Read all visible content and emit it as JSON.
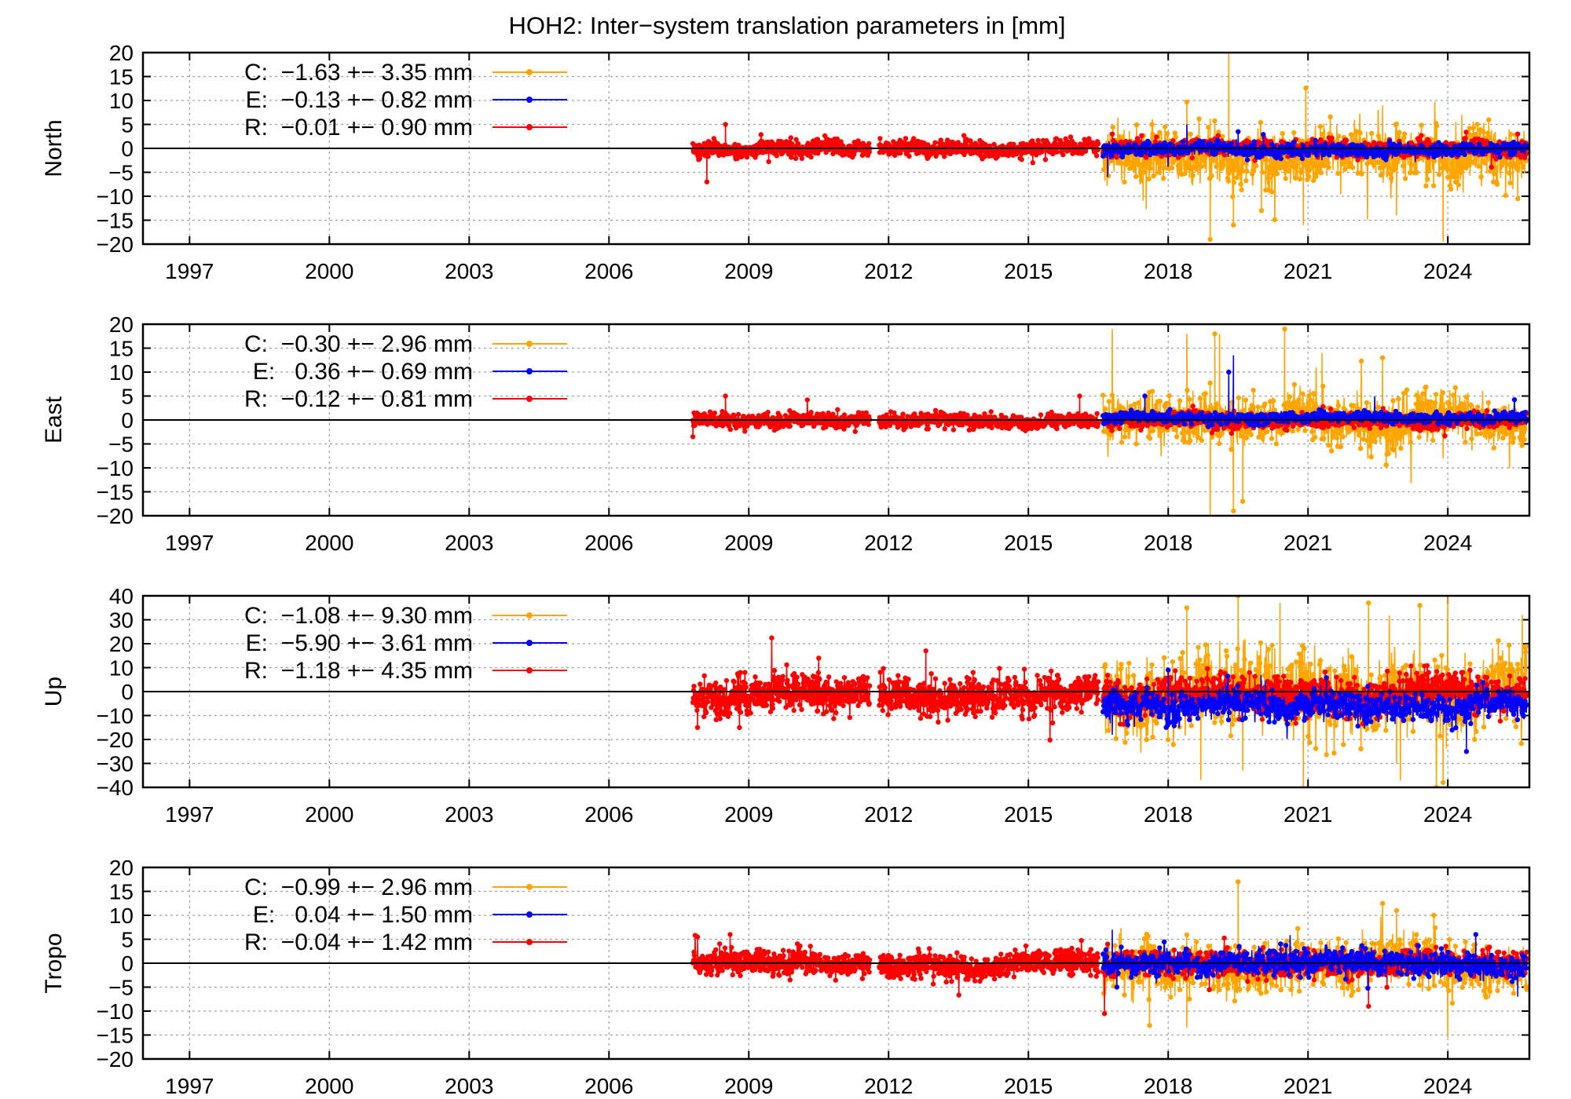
{
  "figure": {
    "title": "HOH2: Inter−system translation parameters in [mm]"
  },
  "chart_data": [
    {
      "type": "line",
      "ylabel": "North",
      "xlim": [
        1996.0,
        2025.75
      ],
      "ylim": [
        -20,
        20
      ],
      "xticks": [
        "1997",
        "2000",
        "2003",
        "2006",
        "2009",
        "2012",
        "2015",
        "2018",
        "2021",
        "2024"
      ],
      "yticks": [
        "20",
        "15",
        "10",
        "5",
        "0",
        "−5",
        "−10",
        "−15",
        "−20"
      ],
      "grid": true,
      "legend_position": "top-left",
      "legend": [
        {
          "key": "C",
          "text": "C:  −1.63 +− 3.35 mm",
          "color": "#ffa500"
        },
        {
          "key": "E",
          "text": "E:  −0.13 +− 0.82 mm",
          "color": "#0000ff"
        },
        {
          "key": "R",
          "text": "R:  −0.01 +− 0.90 mm",
          "color": "#ff0000"
        }
      ],
      "series": [
        {
          "name": "C",
          "color": "#ffa500",
          "x_range": [
            2016.6,
            2025.7
          ],
          "mean": -1.63,
          "std": 3.35,
          "spikes": [
            [
              2018.4,
              9.7
            ],
            [
              2018.9,
              -19.0
            ],
            [
              2019.3,
              20.0
            ],
            [
              2019.4,
              -16.0
            ],
            [
              2020.0,
              -13.0
            ],
            [
              2020.9,
              -16.0
            ],
            [
              2022.6,
              9.0
            ],
            [
              2022.9,
              -14.0
            ],
            [
              2023.9,
              -19.5
            ],
            [
              2024.3,
              7.0
            ],
            [
              2025.5,
              -10.5
            ]
          ]
        },
        {
          "name": "E",
          "color": "#0000ff",
          "x_range": [
            2016.6,
            2025.7
          ],
          "mean": -0.13,
          "std": 0.82,
          "spikes": [
            [
              2016.7,
              -6.0
            ],
            [
              2018.4,
              5.0
            ],
            [
              2019.5,
              3.5
            ]
          ]
        },
        {
          "name": "R",
          "color": "#ff0000",
          "segments": [
            [
              2007.8,
              2011.6
            ],
            [
              2011.8,
              2016.5
            ],
            [
              2016.6,
              2025.7
            ]
          ],
          "mean": -0.01,
          "std": 0.9,
          "spikes": [
            [
              2008.5,
              5.0
            ],
            [
              2008.1,
              -7.0
            ],
            [
              2016.8,
              3.0
            ],
            [
              2025.5,
              3.0
            ]
          ]
        }
      ]
    },
    {
      "type": "line",
      "ylabel": "East",
      "xlim": [
        1996.0,
        2025.75
      ],
      "ylim": [
        -20,
        20
      ],
      "xticks": [
        "1997",
        "2000",
        "2003",
        "2006",
        "2009",
        "2012",
        "2015",
        "2018",
        "2021",
        "2024"
      ],
      "yticks": [
        "20",
        "15",
        "10",
        "5",
        "0",
        "−5",
        "−10",
        "−15",
        "−20"
      ],
      "grid": true,
      "legend_position": "top-left",
      "legend": [
        {
          "key": "C",
          "text": "C:  −0.30 +− 2.96 mm",
          "color": "#ffa500"
        },
        {
          "key": "E",
          "text": "E:   0.36 +− 0.69 mm",
          "color": "#0000ff"
        },
        {
          "key": "R",
          "text": "R:  −0.12 +− 0.81 mm",
          "color": "#ff0000"
        }
      ],
      "series": [
        {
          "name": "C",
          "color": "#ffa500",
          "x_range": [
            2016.6,
            2025.7
          ],
          "mean": -0.3,
          "std": 2.96,
          "spikes": [
            [
              2016.8,
              19.0
            ],
            [
              2018.4,
              18.0
            ],
            [
              2018.9,
              -20.0
            ],
            [
              2019.0,
              18.0
            ],
            [
              2019.1,
              18.0
            ],
            [
              2019.4,
              -19.0
            ],
            [
              2019.6,
              -17.0
            ],
            [
              2020.5,
              19.0
            ],
            [
              2021.3,
              14.0
            ],
            [
              2022.6,
              13.0
            ],
            [
              2023.9,
              -8.0
            ]
          ]
        },
        {
          "name": "E",
          "color": "#0000ff",
          "x_range": [
            2016.6,
            2025.7
          ],
          "mean": 0.36,
          "std": 0.69,
          "spikes": [
            [
              2019.4,
              13.5
            ],
            [
              2019.3,
              10.0
            ],
            [
              2017.5,
              5.0
            ]
          ]
        },
        {
          "name": "R",
          "color": "#ff0000",
          "segments": [
            [
              2007.8,
              2011.6
            ],
            [
              2011.8,
              2016.5
            ],
            [
              2016.6,
              2025.7
            ]
          ],
          "mean": -0.12,
          "std": 0.81,
          "spikes": [
            [
              2008.5,
              5.0
            ],
            [
              2016.1,
              5.0
            ],
            [
              2007.8,
              -3.5
            ]
          ]
        }
      ]
    },
    {
      "type": "line",
      "ylabel": "Up",
      "xlim": [
        1996.0,
        2025.75
      ],
      "ylim": [
        -40,
        40
      ],
      "xticks": [
        "1997",
        "2000",
        "2003",
        "2006",
        "2009",
        "2012",
        "2015",
        "2018",
        "2021",
        "2024"
      ],
      "yticks": [
        "40",
        "30",
        "20",
        "10",
        "0",
        "−10",
        "−20",
        "−30",
        "−40"
      ],
      "grid": true,
      "legend_position": "top-left",
      "legend": [
        {
          "key": "C",
          "text": "C:  −1.08 +− 9.30 mm",
          "color": "#ffa500"
        },
        {
          "key": "E",
          "text": "E:  −5.90 +− 3.61 mm",
          "color": "#0000ff"
        },
        {
          "key": "R",
          "text": "R:  −1.18 +− 4.35 mm",
          "color": "#ff0000"
        }
      ],
      "series": [
        {
          "name": "C",
          "color": "#ffa500",
          "x_range": [
            2016.6,
            2025.7
          ],
          "mean": -1.08,
          "std": 9.3,
          "spikes": [
            [
              2018.4,
              35.0
            ],
            [
              2018.7,
              -37.0
            ],
            [
              2019.5,
              40.0
            ],
            [
              2019.6,
              -33.0
            ],
            [
              2020.4,
              37.0
            ],
            [
              2020.9,
              -40.0
            ],
            [
              2022.3,
              37.0
            ],
            [
              2022.9,
              -30.0
            ],
            [
              2023.4,
              36.0
            ],
            [
              2023.9,
              -38.0
            ],
            [
              2024.0,
              40.0
            ],
            [
              2025.6,
              32.0
            ]
          ]
        },
        {
          "name": "E",
          "color": "#0000ff",
          "x_range": [
            2016.6,
            2025.7
          ],
          "mean": -5.9,
          "std": 3.61,
          "spikes": [
            [
              2024.4,
              -25.0
            ],
            [
              2016.8,
              -18.0
            ],
            [
              2018.0,
              9.0
            ]
          ]
        },
        {
          "name": "R",
          "color": "#ff0000",
          "segments": [
            [
              2007.8,
              2011.6
            ],
            [
              2011.8,
              2016.5
            ],
            [
              2016.6,
              2025.7
            ]
          ],
          "mean": -1.18,
          "std": 4.35,
          "spikes": [
            [
              2012.8,
              17.0
            ],
            [
              2010.5,
              14.0
            ],
            [
              2007.9,
              -15.0
            ],
            [
              2008.8,
              -15.0
            ]
          ]
        }
      ]
    },
    {
      "type": "line",
      "ylabel": "Tropo",
      "xlim": [
        1996.0,
        2025.75
      ],
      "ylim": [
        -20,
        20
      ],
      "xticks": [
        "1997",
        "2000",
        "2003",
        "2006",
        "2009",
        "2012",
        "2015",
        "2018",
        "2021",
        "2024"
      ],
      "yticks": [
        "20",
        "15",
        "10",
        "5",
        "0",
        "−5",
        "−10",
        "−15",
        "−20"
      ],
      "grid": true,
      "legend_position": "top-left",
      "legend": [
        {
          "key": "C",
          "text": "C:  −0.99 +− 2.96 mm",
          "color": "#ffa500"
        },
        {
          "key": "E",
          "text": "E:   0.04 +− 1.50 mm",
          "color": "#0000ff"
        },
        {
          "key": "R",
          "text": "R:  −0.04 +− 1.42 mm",
          "color": "#ff0000"
        }
      ],
      "series": [
        {
          "name": "C",
          "color": "#ffa500",
          "x_range": [
            2016.6,
            2025.7
          ],
          "mean": -0.99,
          "std": 2.96,
          "spikes": [
            [
              2019.5,
              17.0
            ],
            [
              2017.6,
              -13.0
            ],
            [
              2018.4,
              -13.5
            ],
            [
              2022.6,
              12.5
            ],
            [
              2022.9,
              11.0
            ],
            [
              2024.0,
              -15.5
            ],
            [
              2023.7,
              10.0
            ]
          ]
        },
        {
          "name": "E",
          "color": "#0000ff",
          "x_range": [
            2016.6,
            2025.7
          ],
          "mean": 0.04,
          "std": 1.5,
          "spikes": [
            [
              2016.8,
              7.0
            ],
            [
              2016.9,
              -5.0
            ],
            [
              2024.6,
              6.0
            ],
            [
              2025.5,
              -7.0
            ]
          ]
        },
        {
          "name": "R",
          "color": "#ff0000",
          "segments": [
            [
              2007.8,
              2011.6
            ],
            [
              2011.8,
              2016.5
            ],
            [
              2016.6,
              2025.7
            ]
          ],
          "mean": -0.04,
          "std": 1.42,
          "spikes": [
            [
              2008.6,
              6.0
            ],
            [
              2007.9,
              5.5
            ],
            [
              2016.7,
              4.0
            ],
            [
              2022.3,
              -9.0
            ]
          ]
        }
      ]
    }
  ]
}
